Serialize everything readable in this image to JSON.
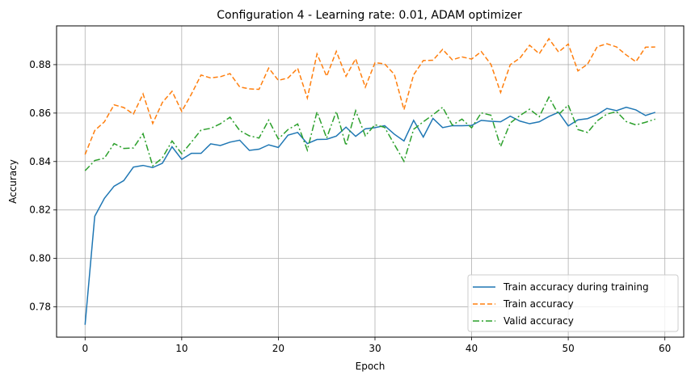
{
  "chart_data": {
    "type": "line",
    "title": "Configuration 4 - Learning rate: 0.01, ADAM optimizer",
    "xlabel": "Epoch",
    "ylabel": "Accuracy",
    "xlim": [
      -2.95,
      61.95
    ],
    "ylim": [
      0.7675,
      0.896
    ],
    "xticks": [
      0,
      10,
      20,
      30,
      40,
      50,
      60
    ],
    "yticks": [
      0.78,
      0.8,
      0.82,
      0.84,
      0.86,
      0.88
    ],
    "ytick_labels": [
      "0.78",
      "0.80",
      "0.82",
      "0.84",
      "0.86",
      "0.88"
    ],
    "grid": true,
    "legend_position": "lower-right",
    "x": [
      0,
      1,
      2,
      3,
      4,
      5,
      6,
      7,
      8,
      9,
      10,
      11,
      12,
      13,
      14,
      15,
      16,
      17,
      18,
      19,
      20,
      21,
      22,
      23,
      24,
      25,
      26,
      27,
      28,
      29,
      30,
      31,
      32,
      33,
      34,
      35,
      36,
      37,
      38,
      39,
      40,
      41,
      42,
      43,
      44,
      45,
      46,
      47,
      48,
      49,
      50,
      51,
      52,
      53,
      54,
      55,
      56,
      57,
      58,
      59
    ],
    "series": [
      {
        "name": "Train accuracy during training",
        "color": "#1f77b4",
        "dash": "solid",
        "values": [
          0.7726,
          0.8174,
          0.8248,
          0.8298,
          0.8321,
          0.8377,
          0.8384,
          0.8375,
          0.8393,
          0.8461,
          0.8409,
          0.8434,
          0.8434,
          0.8473,
          0.8466,
          0.848,
          0.8488,
          0.8446,
          0.8451,
          0.8469,
          0.8458,
          0.8509,
          0.852,
          0.8474,
          0.8491,
          0.8492,
          0.8505,
          0.8542,
          0.8504,
          0.8535,
          0.854,
          0.8548,
          0.8513,
          0.8485,
          0.857,
          0.8501,
          0.8578,
          0.854,
          0.8548,
          0.8548,
          0.8549,
          0.857,
          0.8566,
          0.8564,
          0.8587,
          0.8567,
          0.8556,
          0.8564,
          0.8586,
          0.8603,
          0.8547,
          0.8572,
          0.8577,
          0.8594,
          0.8619,
          0.861,
          0.8624,
          0.8613,
          0.859,
          0.8603
        ]
      },
      {
        "name": "Train accuracy",
        "color": "#ff7f0e",
        "dash": "dashed",
        "values": [
          0.8429,
          0.8528,
          0.8564,
          0.8634,
          0.8623,
          0.8596,
          0.8679,
          0.8557,
          0.8644,
          0.869,
          0.8607,
          0.8678,
          0.8757,
          0.8745,
          0.875,
          0.8763,
          0.8708,
          0.87,
          0.8698,
          0.8786,
          0.8735,
          0.8745,
          0.8785,
          0.8662,
          0.8844,
          0.8752,
          0.8855,
          0.8752,
          0.8824,
          0.8707,
          0.8808,
          0.8803,
          0.876,
          0.8614,
          0.8758,
          0.8817,
          0.8818,
          0.8863,
          0.882,
          0.8832,
          0.8823,
          0.8854,
          0.8801,
          0.8685,
          0.88,
          0.8827,
          0.888,
          0.8845,
          0.8907,
          0.8852,
          0.8885,
          0.8774,
          0.8802,
          0.8874,
          0.8886,
          0.8873,
          0.884,
          0.8812,
          0.8872,
          0.8873
        ]
      },
      {
        "name": "Valid accuracy",
        "color": "#2ca02c",
        "dash": "dashdot",
        "values": [
          0.8362,
          0.8404,
          0.8414,
          0.8474,
          0.8454,
          0.8456,
          0.8515,
          0.8382,
          0.8415,
          0.8485,
          0.8432,
          0.848,
          0.853,
          0.8537,
          0.8556,
          0.8583,
          0.8528,
          0.8506,
          0.8497,
          0.8571,
          0.8493,
          0.8532,
          0.8555,
          0.8447,
          0.8605,
          0.8497,
          0.8607,
          0.8466,
          0.861,
          0.8506,
          0.8552,
          0.8541,
          0.8471,
          0.8401,
          0.8533,
          0.8564,
          0.8593,
          0.8624,
          0.855,
          0.8575,
          0.8539,
          0.8601,
          0.8591,
          0.8462,
          0.8559,
          0.859,
          0.8616,
          0.8585,
          0.8666,
          0.8594,
          0.8633,
          0.8532,
          0.852,
          0.8568,
          0.8596,
          0.8606,
          0.8565,
          0.8551,
          0.8562,
          0.8575
        ]
      }
    ]
  }
}
